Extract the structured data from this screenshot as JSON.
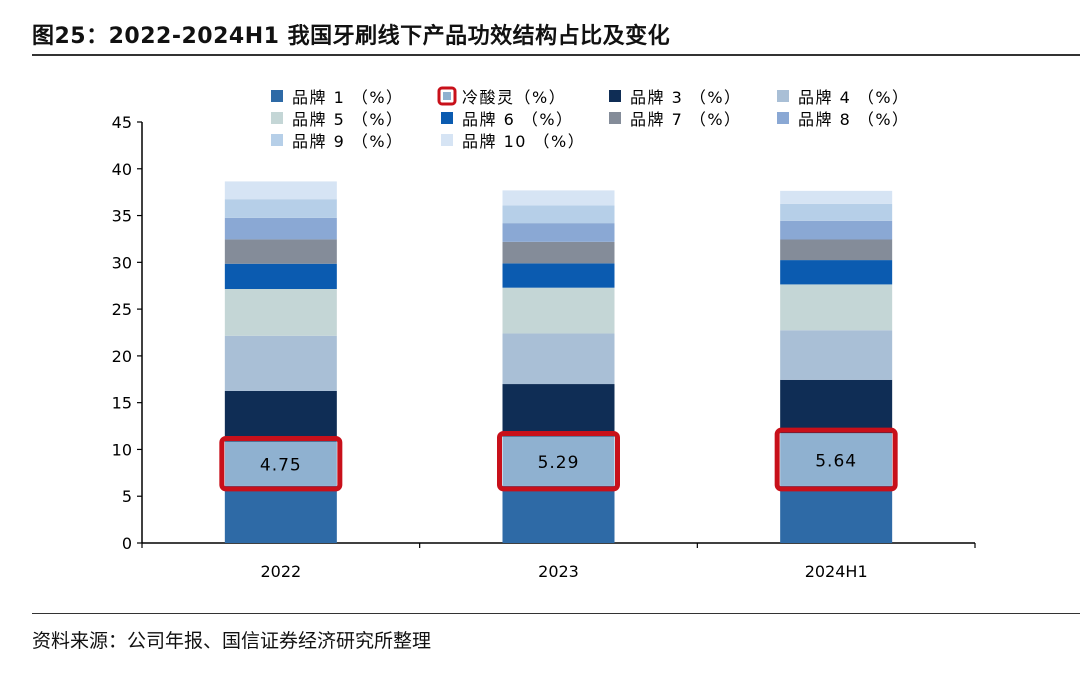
{
  "title": "图25：2022-2024H1 我国牙刷线下产品功效结构占比及变化",
  "source": "资料来源：公司年报、国信证券经济研究所整理",
  "chart_data": {
    "type": "bar",
    "stacked": true,
    "categories": [
      "2022",
      "2023",
      "2024H1"
    ],
    "ylim": [
      0,
      45
    ],
    "yticks": [
      0,
      5,
      10,
      15,
      20,
      25,
      30,
      35,
      40,
      45
    ],
    "legend_placement": "top",
    "series": [
      {
        "name": "品牌 1 （%）",
        "color": "#2e6aa6",
        "values": [
          6.1,
          6.1,
          6.1
        ]
      },
      {
        "name": "冷酸灵（%）",
        "color": "#8fb1d0",
        "values": [
          4.75,
          5.29,
          5.64
        ],
        "labels": [
          "4.75",
          "5.29",
          "5.64"
        ],
        "highlight": true
      },
      {
        "name": "品牌 3 （%）",
        "color": "#0f2d55",
        "values": [
          5.4,
          5.6,
          5.7
        ]
      },
      {
        "name": "品牌 4 （%）",
        "color": "#a9bfd6",
        "values": [
          5.9,
          5.4,
          5.3
        ]
      },
      {
        "name": "品牌 5 （%）",
        "color": "#c4d6d6",
        "values": [
          5.0,
          4.9,
          4.9
        ]
      },
      {
        "name": "品牌 6 （%）",
        "color": "#0b5bb0",
        "values": [
          2.7,
          2.6,
          2.6
        ]
      },
      {
        "name": "品牌 7 （%）",
        "color": "#848c99",
        "values": [
          2.6,
          2.3,
          2.2
        ]
      },
      {
        "name": "品牌 8 （%）",
        "color": "#8aa8d4",
        "values": [
          2.3,
          2.0,
          2.0
        ]
      },
      {
        "name": "品牌 9 （%）",
        "color": "#b6cfe8",
        "values": [
          2.0,
          1.9,
          1.8
        ]
      },
      {
        "name": "品牌 10 （%）",
        "color": "#d6e4f4",
        "values": [
          1.9,
          1.6,
          1.4
        ]
      }
    ]
  }
}
